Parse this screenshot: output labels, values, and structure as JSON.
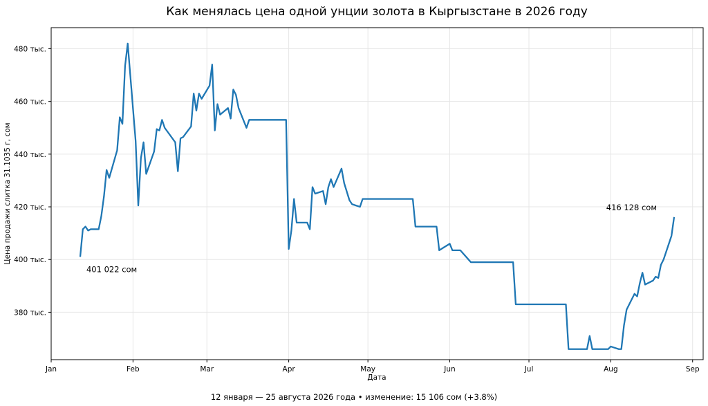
{
  "chart_data": {
    "type": "line",
    "title": "Как менялась цена одной унции золота в Кыргызстане в 2026 году",
    "xlabel": "Дата",
    "ylabel": "Цена продажи слитка 31.1035 г, сом",
    "footer": "12 января — 25 августа 2026 года • изменение: 15 106 сом (+3.8%)",
    "x_ticks": [
      "Jan",
      "Feb",
      "Mar",
      "Apr",
      "May",
      "Jun",
      "Jul",
      "Aug",
      "Sep"
    ],
    "x_tick_dates": [
      "2026-01-01",
      "2026-02-01",
      "2026-03-01",
      "2026-04-01",
      "2026-05-01",
      "2026-06-01",
      "2026-07-01",
      "2026-08-01",
      "2026-09-01"
    ],
    "y_ticks": [
      380000,
      400000,
      420000,
      440000,
      460000,
      480000
    ],
    "y_tick_labels": [
      "380 тыс.",
      "400 тыс.",
      "420 тыс.",
      "440 тыс.",
      "460 тыс.",
      "480 тыс."
    ],
    "xlim": [
      "2026-01-01",
      "2026-09-05"
    ],
    "ylim": [
      362000,
      488000
    ],
    "grid": true,
    "line_color": "#1f77b4",
    "annotations": [
      {
        "text": "401 022 сом",
        "date": "2026-01-12",
        "value": 401022
      },
      {
        "text": "416 128 сом",
        "date": "2026-08-25",
        "value": 416128
      }
    ],
    "series": [
      {
        "color": "#1f77b4",
        "points": [
          [
            "2026-01-12",
            401022
          ],
          [
            "2026-01-13",
            411500
          ],
          [
            "2026-01-14",
            412500
          ],
          [
            "2026-01-15",
            411000
          ],
          [
            "2026-01-16",
            411500
          ],
          [
            "2026-01-19",
            411500
          ],
          [
            "2026-01-20",
            416500
          ],
          [
            "2026-01-21",
            424000
          ],
          [
            "2026-01-22",
            434000
          ],
          [
            "2026-01-23",
            431000
          ],
          [
            "2026-01-26",
            441500
          ],
          [
            "2026-01-27",
            454000
          ],
          [
            "2026-01-28",
            451500
          ],
          [
            "2026-01-29",
            473500
          ],
          [
            "2026-01-30",
            482000
          ],
          [
            "2026-02-02",
            445000
          ],
          [
            "2026-02-03",
            420500
          ],
          [
            "2026-02-04",
            438500
          ],
          [
            "2026-02-05",
            444500
          ],
          [
            "2026-02-06",
            432500
          ],
          [
            "2026-02-09",
            441000
          ],
          [
            "2026-02-10",
            449500
          ],
          [
            "2026-02-11",
            449000
          ],
          [
            "2026-02-12",
            453000
          ],
          [
            "2026-02-13",
            450000
          ],
          [
            "2026-02-17",
            444500
          ],
          [
            "2026-02-18",
            433500
          ],
          [
            "2026-02-19",
            446000
          ],
          [
            "2026-02-20",
            446500
          ],
          [
            "2026-02-23",
            450500
          ],
          [
            "2026-02-24",
            463000
          ],
          [
            "2026-02-25",
            456500
          ],
          [
            "2026-02-26",
            463000
          ],
          [
            "2026-02-27",
            461000
          ],
          [
            "2026-03-02",
            466000
          ],
          [
            "2026-03-03",
            474000
          ],
          [
            "2026-03-04",
            449000
          ],
          [
            "2026-03-05",
            459000
          ],
          [
            "2026-03-06",
            455000
          ],
          [
            "2026-03-09",
            457500
          ],
          [
            "2026-03-10",
            453500
          ],
          [
            "2026-03-11",
            464500
          ],
          [
            "2026-03-12",
            462500
          ],
          [
            "2026-03-13",
            457500
          ],
          [
            "2026-03-16",
            450000
          ],
          [
            "2026-03-17",
            453000
          ],
          [
            "2026-03-31",
            453000
          ],
          [
            "2026-04-01",
            404000
          ],
          [
            "2026-04-02",
            411000
          ],
          [
            "2026-04-03",
            423000
          ],
          [
            "2026-04-04",
            414000
          ],
          [
            "2026-04-08",
            414000
          ],
          [
            "2026-04-09",
            411500
          ],
          [
            "2026-04-10",
            427500
          ],
          [
            "2026-04-11",
            425000
          ],
          [
            "2026-04-14",
            426000
          ],
          [
            "2026-04-15",
            421000
          ],
          [
            "2026-04-16",
            427500
          ],
          [
            "2026-04-17",
            430500
          ],
          [
            "2026-04-18",
            427500
          ],
          [
            "2026-04-21",
            434500
          ],
          [
            "2026-04-22",
            429000
          ],
          [
            "2026-04-24",
            422500
          ],
          [
            "2026-04-25",
            421000
          ],
          [
            "2026-04-28",
            420000
          ],
          [
            "2026-04-29",
            423000
          ],
          [
            "2026-05-18",
            423000
          ],
          [
            "2026-05-19",
            412500
          ],
          [
            "2026-05-27",
            412500
          ],
          [
            "2026-05-28",
            403500
          ],
          [
            "2026-06-01",
            406000
          ],
          [
            "2026-06-02",
            403500
          ],
          [
            "2026-06-05",
            403500
          ],
          [
            "2026-06-09",
            399000
          ],
          [
            "2026-06-25",
            399000
          ],
          [
            "2026-06-26",
            383000
          ],
          [
            "2026-07-15",
            383000
          ],
          [
            "2026-07-16",
            366000
          ],
          [
            "2026-07-23",
            366000
          ],
          [
            "2026-07-24",
            371000
          ],
          [
            "2026-07-25",
            366000
          ],
          [
            "2026-07-31",
            366000
          ],
          [
            "2026-08-01",
            367000
          ],
          [
            "2026-08-04",
            366000
          ],
          [
            "2026-08-05",
            366000
          ],
          [
            "2026-08-06",
            375000
          ],
          [
            "2026-08-07",
            381000
          ],
          [
            "2026-08-10",
            387000
          ],
          [
            "2026-08-11",
            386000
          ],
          [
            "2026-08-12",
            391000
          ],
          [
            "2026-08-13",
            395000
          ],
          [
            "2026-08-14",
            390500
          ],
          [
            "2026-08-17",
            392000
          ],
          [
            "2026-08-18",
            393500
          ],
          [
            "2026-08-19",
            393000
          ],
          [
            "2026-08-20",
            398000
          ],
          [
            "2026-08-21",
            400000
          ],
          [
            "2026-08-24",
            409000
          ],
          [
            "2026-08-25",
            416128
          ]
        ]
      }
    ]
  }
}
